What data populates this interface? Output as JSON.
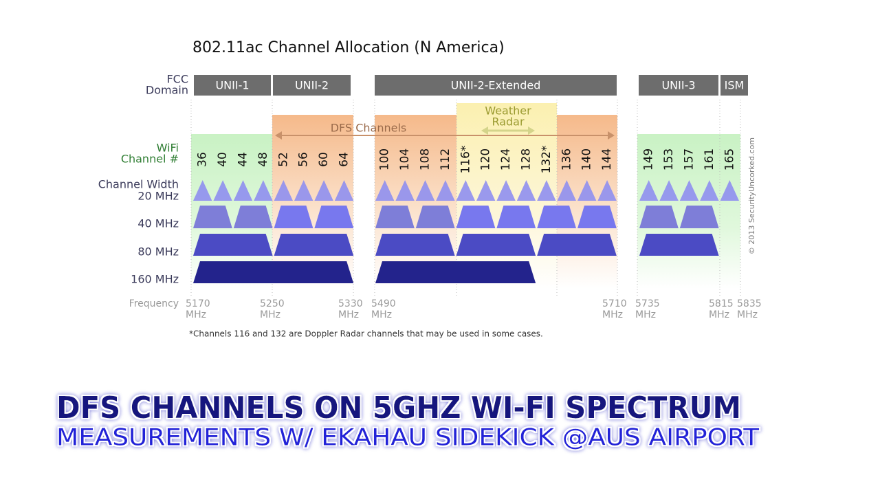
{
  "title": "802.11ac Channel Allocation (N America)",
  "row_labels": {
    "fcc_domain": [
      "FCC",
      "Domain"
    ],
    "wifi_channel": [
      "WiFi",
      "Channel #"
    ],
    "channel_width": "Channel Width",
    "widths": [
      "20 MHz",
      "40 MHz",
      "80 MHz",
      "160 MHz"
    ],
    "frequency": "Frequency"
  },
  "domains": [
    "UNII-1",
    "UNII-2",
    "UNII-2-Extended",
    "UNII-3",
    "ISM"
  ],
  "dfs_label": "DFS Channels",
  "weather_radar": [
    "Weather",
    "Radar"
  ],
  "channels": [
    "36",
    "40",
    "44",
    "48",
    "52",
    "56",
    "60",
    "64",
    "100",
    "104",
    "108",
    "112",
    "116*",
    "120",
    "124",
    "128",
    "132*",
    "136",
    "140",
    "144",
    "149",
    "153",
    "157",
    "161",
    "165"
  ],
  "frequencies": [
    {
      "number": "5170",
      "unit": "MHz"
    },
    {
      "number": "5250",
      "unit": "MHz"
    },
    {
      "number": "5330",
      "unit": "MHz"
    },
    {
      "number": "5490",
      "unit": "MHz"
    },
    {
      "number": "5710",
      "unit": "MHz"
    },
    {
      "number": "5735",
      "unit": "MHz"
    },
    {
      "number": "5815",
      "unit": "MHz"
    },
    {
      "number": "5835",
      "unit": "MHz"
    }
  ],
  "footnote": "*Channels 116 and 132 are Doppler Radar channels that may be used in some cases.",
  "copyright": "© 2013 SecurityUncorked.com",
  "headline": "DFS CHANNELS ON 5GHZ WI-FI SPECTRUM",
  "subheadline": "MEASUREMENTS W/ EKAHAU SIDEKICK @AUS AIRPORT"
}
